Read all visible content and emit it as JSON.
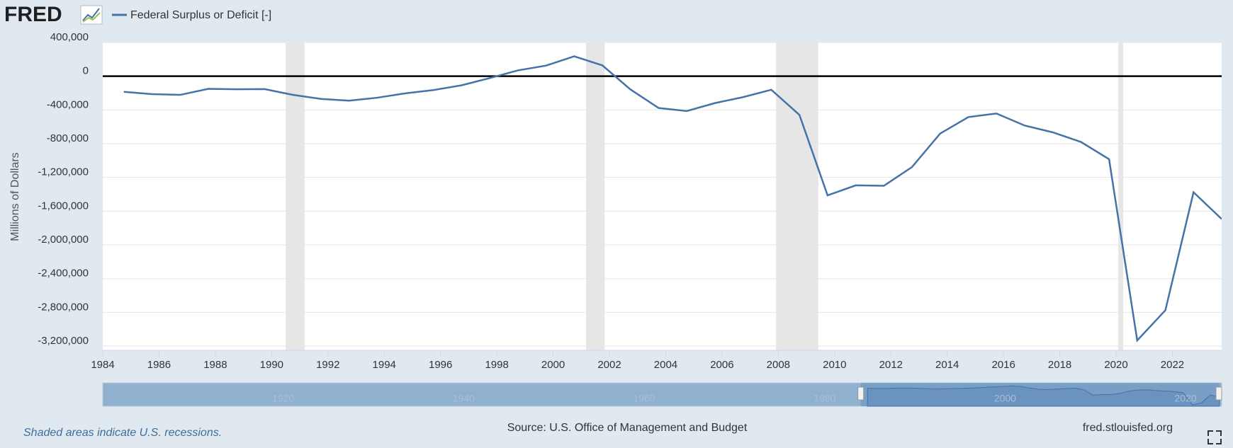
{
  "chart_data": {
    "type": "line",
    "logo": "FRED",
    "y_label": "Millions of Dollars",
    "note": "Shaded areas indicate U.S. recessions.",
    "source": "Source: U.S. Office of Management and Budget",
    "site": "fred.stlouisfed.org",
    "x": [
      1984.75,
      1985.75,
      1986.75,
      1987.75,
      1988.75,
      1989.75,
      1990.75,
      1991.75,
      1992.75,
      1993.75,
      1994.75,
      1995.75,
      1996.75,
      1997.75,
      1998.75,
      1999.75,
      2000.75,
      2001.75,
      2002.75,
      2003.75,
      2004.75,
      2005.75,
      2006.75,
      2007.75,
      2008.75,
      2009.75,
      2010.75,
      2011.75,
      2012.75,
      2013.75,
      2014.75,
      2015.75,
      2016.75,
      2017.75,
      2018.75,
      2019.75,
      2020.75,
      2021.75,
      2022.75,
      2023.75
    ],
    "series": [
      {
        "name": "Federal Surplus or Deficit [-]",
        "color": "#4572a7",
        "values": [
          -185367,
          -212308,
          -221227,
          -149730,
          -155178,
          -152639,
          -221036,
          -269238,
          -290321,
          -255051,
          -203186,
          -163952,
          -107431,
          -21884,
          69270,
          125610,
          236241,
          128236,
          -157758,
          -377585,
          -412727,
          -318346,
          -248181,
          -160701,
          -458553,
          -1412688,
          -1294373,
          -1299599,
          -1076573,
          -679775,
          -484600,
          -442002,
          -584651,
          -665446,
          -779137,
          -983588,
          -3132460,
          -2775306,
          -1375905,
          -1693700
        ]
      }
    ],
    "recessions": [
      [
        1990.5,
        1991.17
      ],
      [
        2001.17,
        2001.83
      ],
      [
        2007.92,
        2009.42
      ],
      [
        2020.08,
        2020.25
      ]
    ],
    "xlim": [
      1984,
      2023.75
    ],
    "xticks": [
      1984,
      1986,
      1988,
      1990,
      1992,
      1994,
      1996,
      1998,
      2000,
      2002,
      2004,
      2006,
      2008,
      2010,
      2012,
      2014,
      2016,
      2018,
      2020,
      2022
    ],
    "ylim": [
      -3250000,
      400000
    ],
    "yticks": [
      {
        "value": 400000,
        "label": "400,000"
      },
      0,
      {
        "value": -400000,
        "label": "-400,000"
      },
      {
        "value": -800000,
        "label": "-800,000"
      },
      {
        "value": -1200000,
        "label": "-1,200,000"
      },
      {
        "value": -1600000,
        "label": "-1,600,000"
      },
      {
        "value": -2000000,
        "label": "-2,000,000"
      },
      {
        "value": -2400000,
        "label": "-2,400,000"
      },
      {
        "value": -2800000,
        "label": "-2,800,000"
      },
      {
        "value": -3200000,
        "label": "-3,200,000"
      }
    ],
    "grid": true,
    "zero_line": true,
    "navigator_xlim": [
      1900,
      2024
    ],
    "navigator_ticks": [
      1920,
      1940,
      1960,
      1980,
      2000,
      2020
    ]
  }
}
